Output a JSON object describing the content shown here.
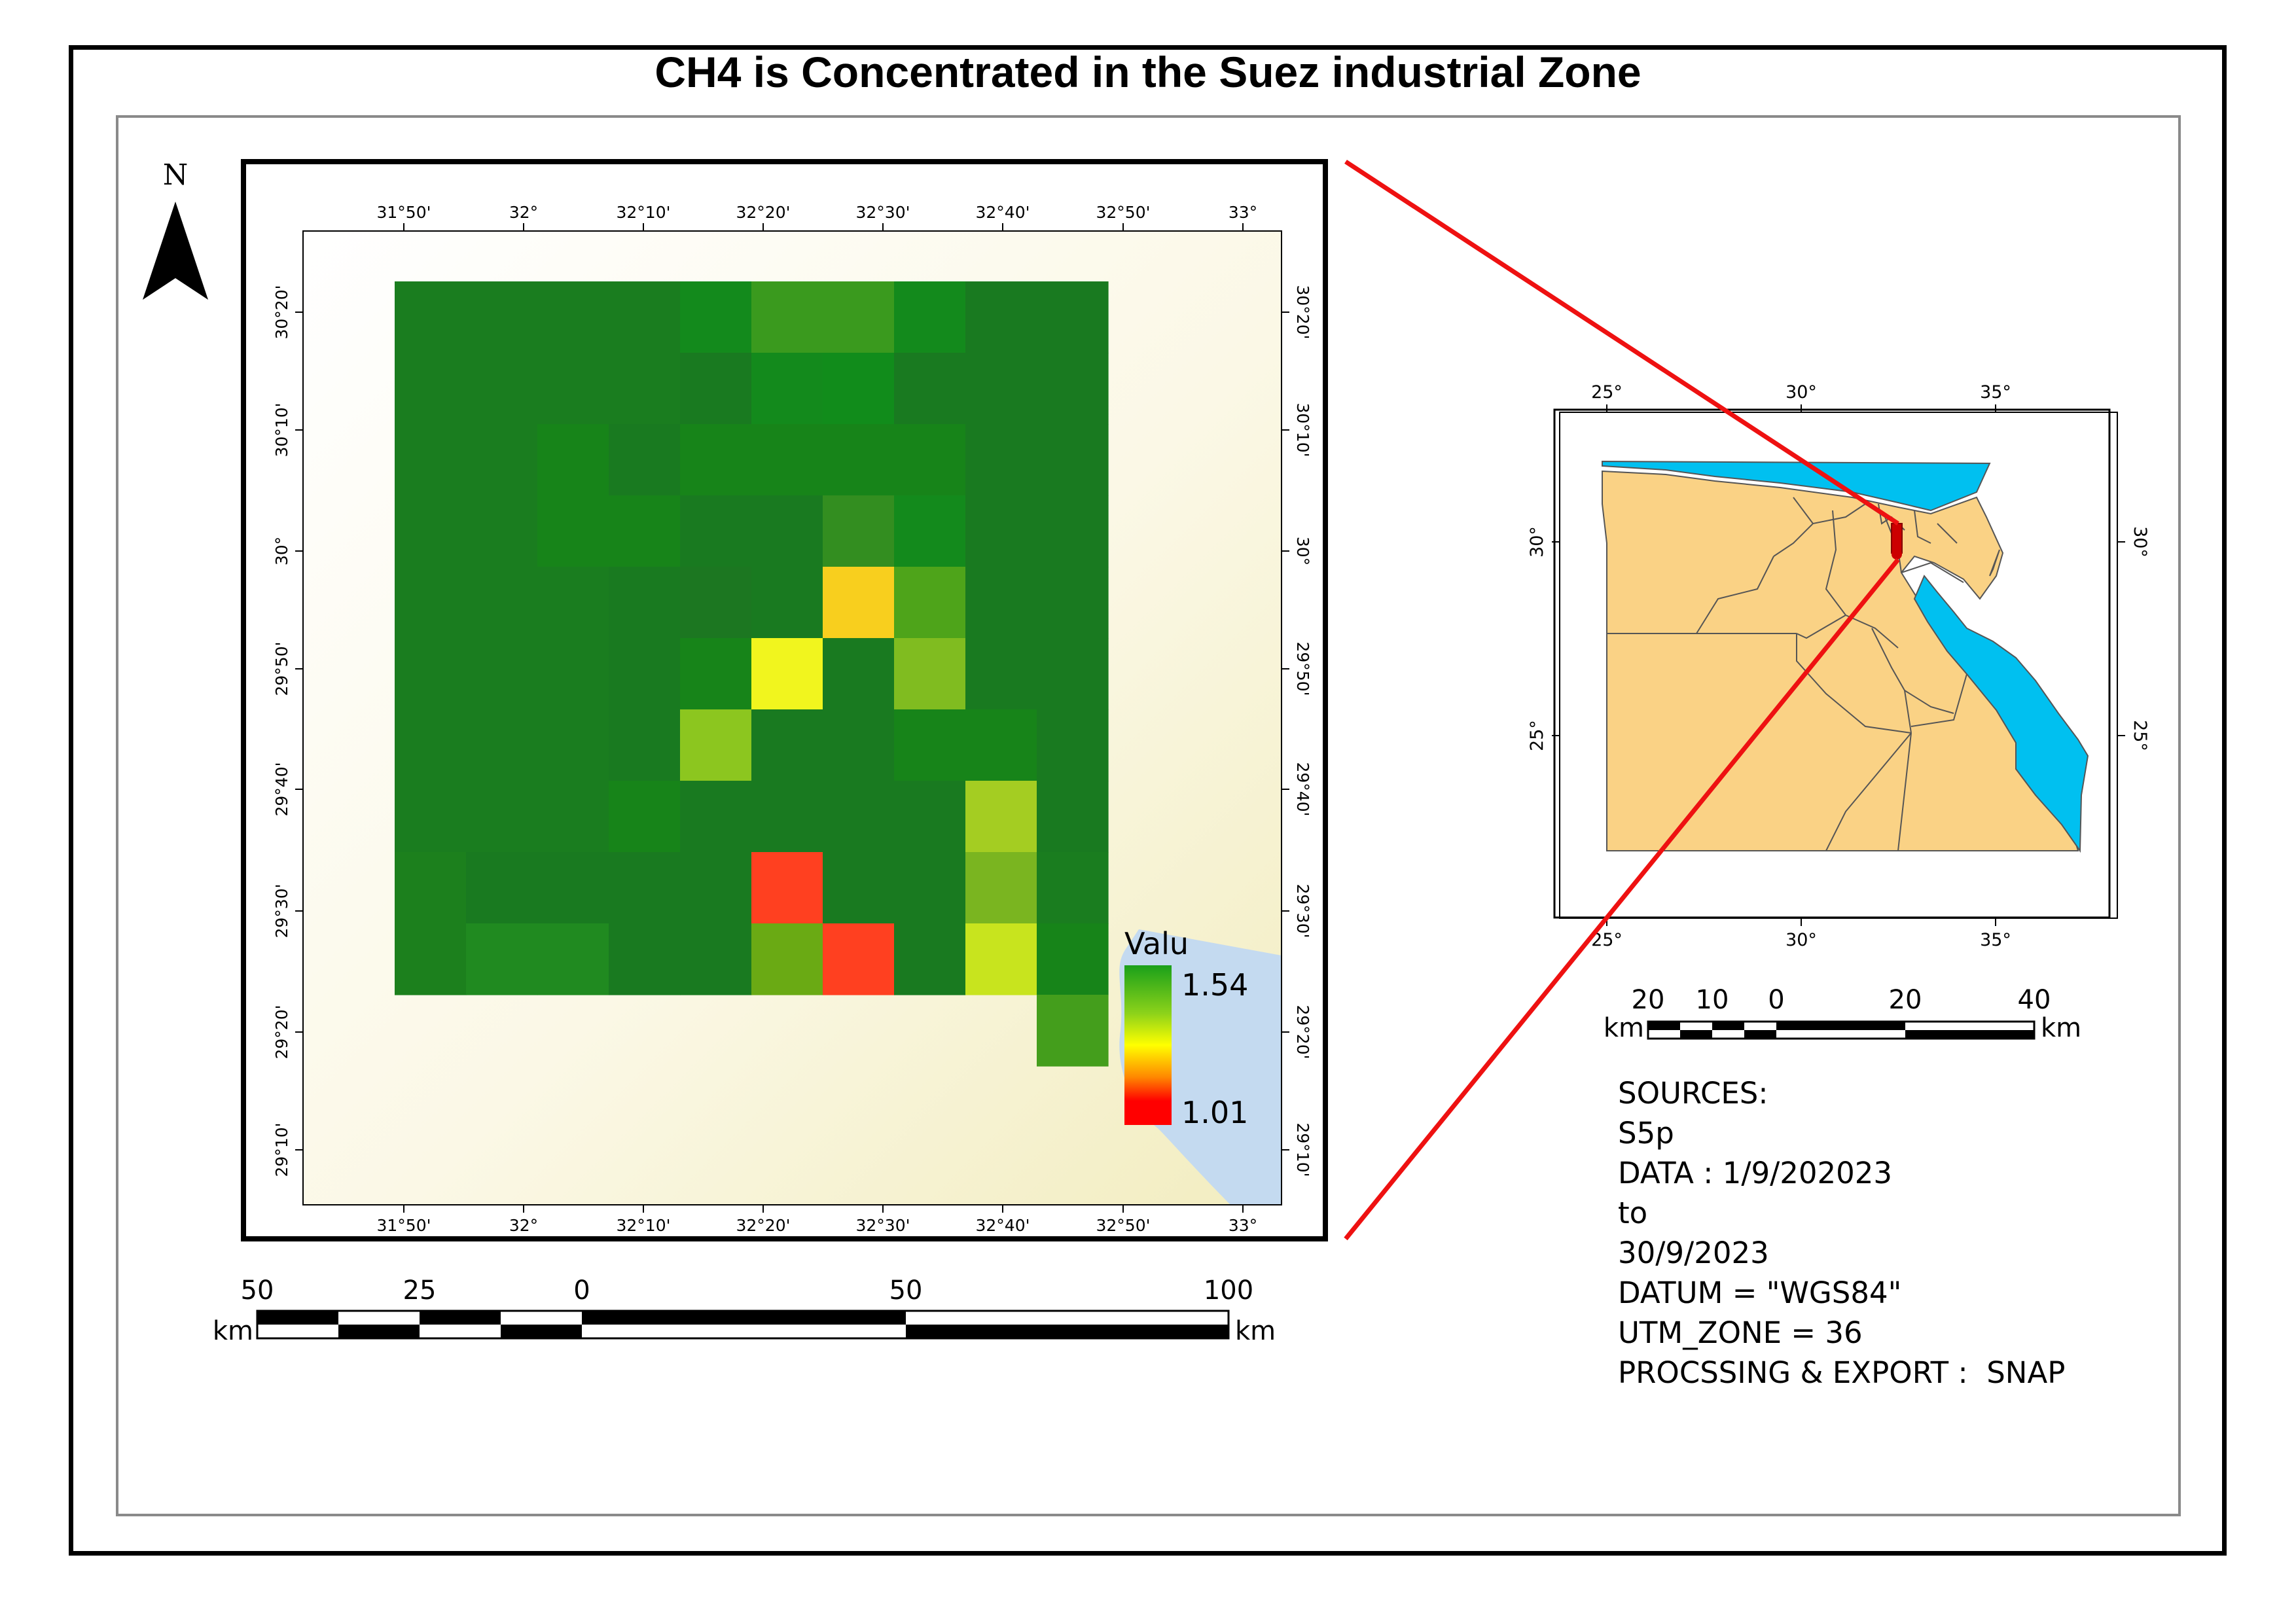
{
  "title": "CH4 is Concentrated in the Suez industrial Zone",
  "colors": {
    "background": "#ffffff",
    "frame": "#000000",
    "inner_frame": "#8a8a8a",
    "land_beige": "#f7f3d5",
    "water_blue": "#c4daf0",
    "egypt_fill": "#fad285",
    "sea_fill": "#00c0f0",
    "boundary": "#555555",
    "connector": "#ee1111",
    "ramp_high": "#1aa01a",
    "ramp_mid": "#ffff00",
    "ramp_low": "#ff0000"
  },
  "north_arrow": {
    "label": "N",
    "icon": "north-arrow-icon"
  },
  "main_map": {
    "top_ticks": [
      "31°50'",
      "32°",
      "32°10'",
      "32°20'",
      "32°30'",
      "32°40'",
      "32°50'",
      "33°"
    ],
    "bottom_ticks": [
      "31°50'",
      "32°",
      "32°10'",
      "32°20'",
      "32°30'",
      "32°40'",
      "32°50'",
      "33°"
    ],
    "left_ticks": [
      "30°20'",
      "30°10'",
      "30°",
      "29°50'",
      "29°40'",
      "29°30'",
      "29°20'",
      "29°10'"
    ],
    "right_ticks": [
      "30°20'",
      "30°10'",
      "30°",
      "29°50'",
      "29°40'",
      "29°30'",
      "29°20'",
      "29°10'"
    ],
    "ch4_grid_rows": [
      [
        "#1a7d1f",
        "#1a7d1f",
        "#1a7d1f",
        "#1a7d1f",
        "#138a1c",
        "#3a9a1e",
        "#3a9a1e",
        "#138a1c",
        "#197a20",
        "#197a20"
      ],
      [
        "#1a7d1f",
        "#1a7d1f",
        "#1a7d1f",
        "#1a7d1f",
        "#197a20",
        "#138a1c",
        "#118c1b",
        "#197a20",
        "#197a20",
        "#197a20"
      ],
      [
        "#1a7d1f",
        "#1a7d1f",
        "#178419",
        "#197a20",
        "#178419",
        "#178419",
        "#178419",
        "#178419",
        "#197a20",
        "#197a20"
      ],
      [
        "#1a7d1f",
        "#1a7d1f",
        "#178419",
        "#178419",
        "#197a20",
        "#197a20",
        "#338e20",
        "#138a1c",
        "#197a20",
        "#197a20"
      ],
      [
        "#1a7d1f",
        "#1a7d1f",
        "#1a7d1f",
        "#197a20",
        "#1c7721",
        "#197a20",
        "#f8cf1e",
        "#4ea41a",
        "#197a20",
        "#197a20"
      ],
      [
        "#1a7d1f",
        "#1a7d1f",
        "#1a7d1f",
        "#197a20",
        "#178419",
        "#f1f51e",
        "#197a20",
        "#80bc20",
        "#197a20",
        "#197a20"
      ],
      [
        "#1a7d1f",
        "#1a7d1f",
        "#1a7d1f",
        "#197a20",
        "#8cc61f",
        "#197a20",
        "#197a20",
        "#178419",
        "#178419",
        "#197a20"
      ],
      [
        "#1a7d1f",
        "#1a7d1f",
        "#1a7d1f",
        "#178419",
        "#197a20",
        "#197a20",
        "#197a20",
        "#197a20",
        "#a4cd22",
        "#197a20"
      ],
      [
        "#1c801d",
        "#197a20",
        "#197a20",
        "#197a20",
        "#197a20",
        "#ff4020",
        "#197a20",
        "#197a20",
        "#7ab520",
        "#1a7d1f"
      ],
      [
        "#1c801d",
        "#208a20",
        "#208a20",
        "#197a20",
        "#197a20",
        "#6aaa14",
        "#ff4020",
        "#197a20",
        "#c8e41e",
        "#178419"
      ],
      [
        null,
        null,
        null,
        null,
        null,
        null,
        null,
        null,
        null,
        "#449e1c"
      ]
    ],
    "legend": {
      "title": "Valu",
      "max": "1.54",
      "min": "1.01"
    }
  },
  "main_scale": {
    "labels": [
      "50",
      "25",
      "0",
      "50",
      "100"
    ],
    "unit_left": "km",
    "unit_right": "km"
  },
  "inset_map": {
    "top_ticks": [
      "25°",
      "30°",
      "35°"
    ],
    "bottom_ticks": [
      "25°",
      "30°",
      "35°"
    ],
    "left_ticks": [
      "30°",
      "25°"
    ],
    "right_ticks": [
      "30°",
      "25°"
    ]
  },
  "inset_scale": {
    "labels": [
      "20",
      "10",
      "0",
      "20",
      "40"
    ],
    "unit_left": "km",
    "unit_right": "km"
  },
  "sources": {
    "line1": "SOURCES:",
    "line2": "S5p",
    "line3": "DATA : 1/9/202023",
    "line4": "to",
    "line5": "30/9/2023",
    "line6": "DATUM = \"WGS84\"",
    "line7": "UTM_ZONE = 36",
    "line8": "PROCSSING & EXPORT :  SNAP"
  }
}
